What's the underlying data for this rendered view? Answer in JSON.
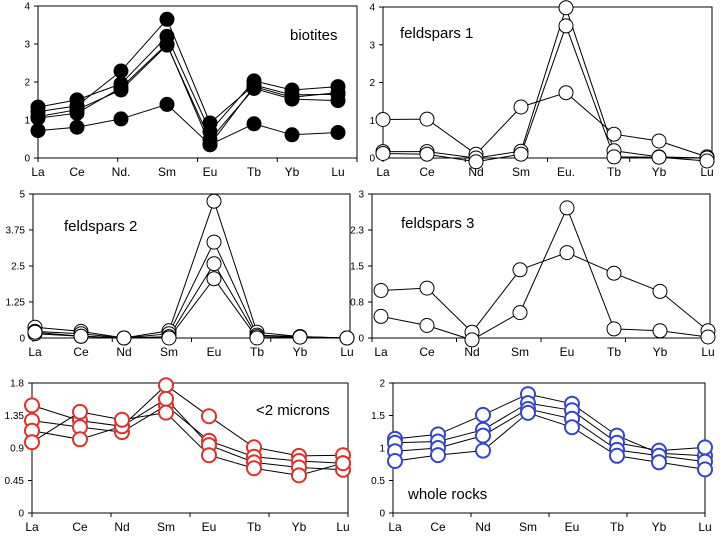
{
  "chart_data": [
    {
      "type": "line",
      "title": "biotites",
      "categories": [
        "La",
        "Ce",
        "Nd.",
        "Sm",
        "Eu",
        "Tb",
        "Yb",
        "Lu"
      ],
      "ylim": [
        0,
        4
      ],
      "yticks": [
        "0",
        "1",
        "2",
        "3",
        "4"
      ],
      "yticks_values": [
        0,
        1,
        2,
        3,
        4
      ],
      "marker": "filled-circle",
      "color": "#000000",
      "series": [
        {
          "values": [
            1.22,
            1.37,
            2.29,
            3.65,
            0.92,
            1.92,
            1.66,
            1.68
          ]
        },
        {
          "values": [
            1.34,
            1.53,
            1.95,
            3.2,
            0.7,
            2.03,
            1.79,
            1.88
          ]
        },
        {
          "values": [
            1.09,
            1.27,
            1.79,
            2.97,
            0.48,
            1.83,
            1.55,
            1.51
          ]
        },
        {
          "values": [
            1.05,
            1.18,
            1.85,
            3.0,
            0.35,
            1.88,
            1.6,
            1.72
          ]
        },
        {
          "values": [
            0.72,
            0.81,
            1.03,
            1.41,
            0.35,
            0.9,
            0.61,
            0.67
          ]
        }
      ]
    },
    {
      "type": "line",
      "title": "feldspars 1",
      "categories": [
        "La",
        "Ce",
        "Nd",
        "Sm",
        "Eu.",
        "Tb",
        "Yb",
        "Lu"
      ],
      "ylim": [
        0,
        4
      ],
      "yticks": [
        "0",
        "1",
        "2",
        "3",
        "4"
      ],
      "yticks_values": [
        0,
        1,
        2,
        3,
        4
      ],
      "marker": "open-circle",
      "color": "#000000",
      "series": [
        {
          "values": [
            1.02,
            1.03,
            0.1,
            1.35,
            1.73,
            0.63,
            0.45,
            0.03
          ]
        },
        {
          "values": [
            0.17,
            0.17,
            0.0,
            0.18,
            3.98,
            0.19,
            0.03,
            0.0
          ]
        },
        {
          "values": [
            0.12,
            0.1,
            -0.1,
            0.1,
            3.5,
            0.03,
            0.02,
            -0.08
          ]
        }
      ]
    },
    {
      "type": "line",
      "title": "feldspars 2",
      "categories": [
        "La",
        "Ce",
        "Nd",
        "Sm",
        "Eu",
        "Tb",
        "Yb",
        "Lu"
      ],
      "ylim": [
        0,
        5
      ],
      "yticks": [
        "0",
        "1.25",
        "2.5",
        "3.75",
        "5"
      ],
      "yticks_values": [
        0,
        1.25,
        2.5,
        3.75,
        5
      ],
      "marker": "open-circle",
      "color": "#000000",
      "series": [
        {
          "values": [
            0.37,
            0.23,
            0,
            0.25,
            4.75,
            0.2,
            0.05,
            0
          ]
        },
        {
          "values": [
            0.23,
            0.15,
            0,
            0.15,
            3.33,
            0.1,
            0.05,
            0
          ]
        },
        {
          "values": [
            0.15,
            0.06,
            0,
            0.05,
            2.58,
            0.05,
            0.03,
            0
          ]
        },
        {
          "values": [
            0.2,
            0.06,
            0,
            0,
            2.06,
            0,
            0.03,
            0
          ]
        }
      ]
    },
    {
      "type": "line",
      "title": "feldspars 3",
      "categories": [
        "La",
        "Ce",
        "Nd",
        "Sm",
        "Eu",
        "Tb",
        "Yb",
        "Lu"
      ],
      "ylim": [
        0,
        3
      ],
      "yticks": [
        "0",
        "0.8",
        "1.5",
        "2.3",
        "3"
      ],
      "yticks_values": [
        0,
        0.75,
        1.5,
        2.25,
        3
      ],
      "marker": "open-circle",
      "color": "#000000",
      "series": [
        {
          "values": [
            0.99,
            1.04,
            0.12,
            1.42,
            1.78,
            1.35,
            0.97,
            0.15
          ]
        },
        {
          "values": [
            0.45,
            0.26,
            -0.04,
            0.53,
            2.71,
            0.19,
            0.15,
            0.02
          ]
        }
      ]
    },
    {
      "type": "line",
      "title": "<2 microns",
      "categories": [
        "La",
        "Ce",
        "Nd",
        "Sm",
        "Eu",
        "Tb",
        "Yb",
        "Lu"
      ],
      "ylim": [
        0,
        1.8
      ],
      "yticks": [
        "0",
        "0.45",
        "0.9",
        "1.35",
        "1.8"
      ],
      "yticks_values": [
        0,
        0.45,
        0.9,
        1.35,
        1.8
      ],
      "marker": "open-circle",
      "color": "#e0302a",
      "series": [
        {
          "values": [
            1.49,
            1.28,
            1.2,
            1.77,
            1.34,
            0.91,
            0.79,
            0.8
          ]
        },
        {
          "values": [
            1.28,
            1.19,
            1.12,
            1.49,
            1.0,
            0.78,
            0.72,
            0.69
          ]
        },
        {
          "values": [
            1.14,
            1.02,
            1.2,
            1.58,
            0.94,
            0.7,
            0.63,
            0.6
          ]
        },
        {
          "values": [
            0.98,
            1.4,
            1.29,
            1.39,
            0.8,
            0.62,
            0.52,
            0.69
          ]
        }
      ]
    },
    {
      "type": "line",
      "title": "whole rocks",
      "categories": [
        "La",
        "Ce",
        "Nd",
        "Sm",
        "Eu",
        "Tb",
        "Yb",
        "Lu"
      ],
      "ylim": [
        0,
        2
      ],
      "yticks": [
        "0",
        "0.5",
        "1",
        "1.5",
        "2"
      ],
      "yticks_values": [
        0,
        0.5,
        1,
        1.5,
        2
      ],
      "marker": "open-circle",
      "color": "#3545d0",
      "series": [
        {
          "values": [
            1.14,
            1.21,
            1.51,
            1.83,
            1.68,
            1.19,
            0.92,
            0.88
          ]
        },
        {
          "values": [
            1.08,
            1.1,
            1.28,
            1.69,
            1.58,
            1.08,
            0.96,
            1.01
          ]
        },
        {
          "values": [
            0.95,
            1.0,
            1.19,
            1.6,
            1.45,
            0.97,
            0.88,
            0.79
          ]
        },
        {
          "values": [
            0.8,
            0.89,
            0.96,
            1.54,
            1.32,
            0.88,
            0.78,
            0.67
          ]
        }
      ]
    }
  ]
}
